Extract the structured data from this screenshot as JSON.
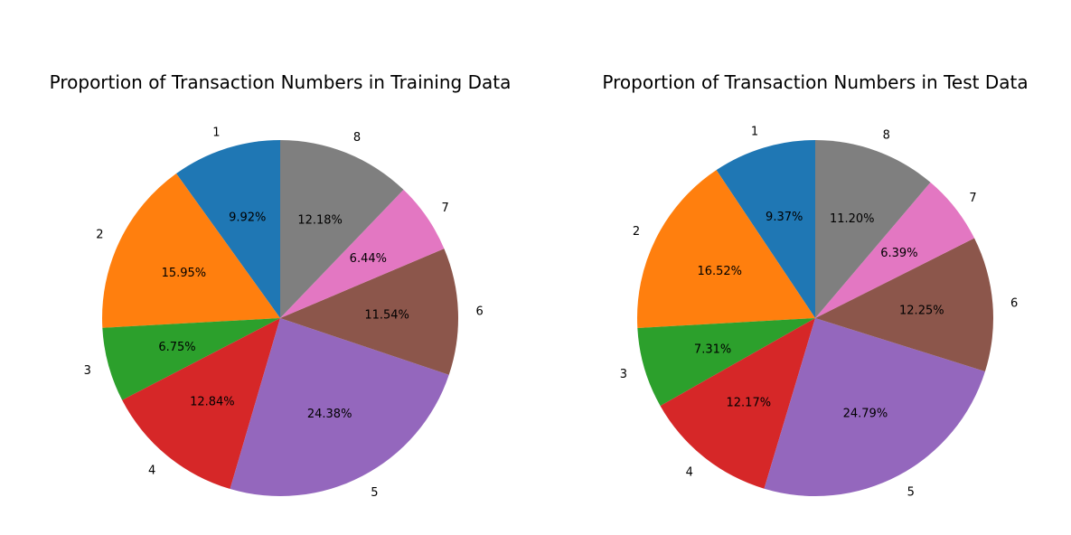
{
  "chart_data": [
    {
      "type": "pie",
      "title": "Proportion of Transaction Numbers in Training Data",
      "categories": [
        "1",
        "2",
        "3",
        "4",
        "5",
        "6",
        "7",
        "8"
      ],
      "values": [
        9.92,
        15.95,
        6.75,
        12.84,
        24.38,
        11.54,
        6.44,
        12.18
      ],
      "value_labels": [
        "9.92%",
        "15.95%",
        "6.75%",
        "12.84%",
        "24.38%",
        "11.54%",
        "6.44%",
        "12.18%"
      ],
      "colors": [
        "#1f77b4",
        "#ff7f0e",
        "#2ca02c",
        "#d62728",
        "#9467bd",
        "#8c564b",
        "#e377c2",
        "#7f7f7f"
      ],
      "start_angle": 90,
      "direction": "counterclockwise",
      "legend": "none"
    },
    {
      "type": "pie",
      "title": "Proportion of Transaction Numbers in Test Data",
      "categories": [
        "1",
        "2",
        "3",
        "4",
        "5",
        "6",
        "7",
        "8"
      ],
      "values": [
        9.37,
        16.52,
        7.31,
        12.17,
        24.79,
        12.25,
        6.39,
        11.2
      ],
      "value_labels": [
        "9.37%",
        "16.52%",
        "7.31%",
        "12.17%",
        "24.79%",
        "12.25%",
        "6.39%",
        "11.20%"
      ],
      "colors": [
        "#1f77b4",
        "#ff7f0e",
        "#2ca02c",
        "#d62728",
        "#9467bd",
        "#8c564b",
        "#e377c2",
        "#7f7f7f"
      ],
      "start_angle": 90,
      "direction": "counterclockwise",
      "legend": "none"
    }
  ]
}
